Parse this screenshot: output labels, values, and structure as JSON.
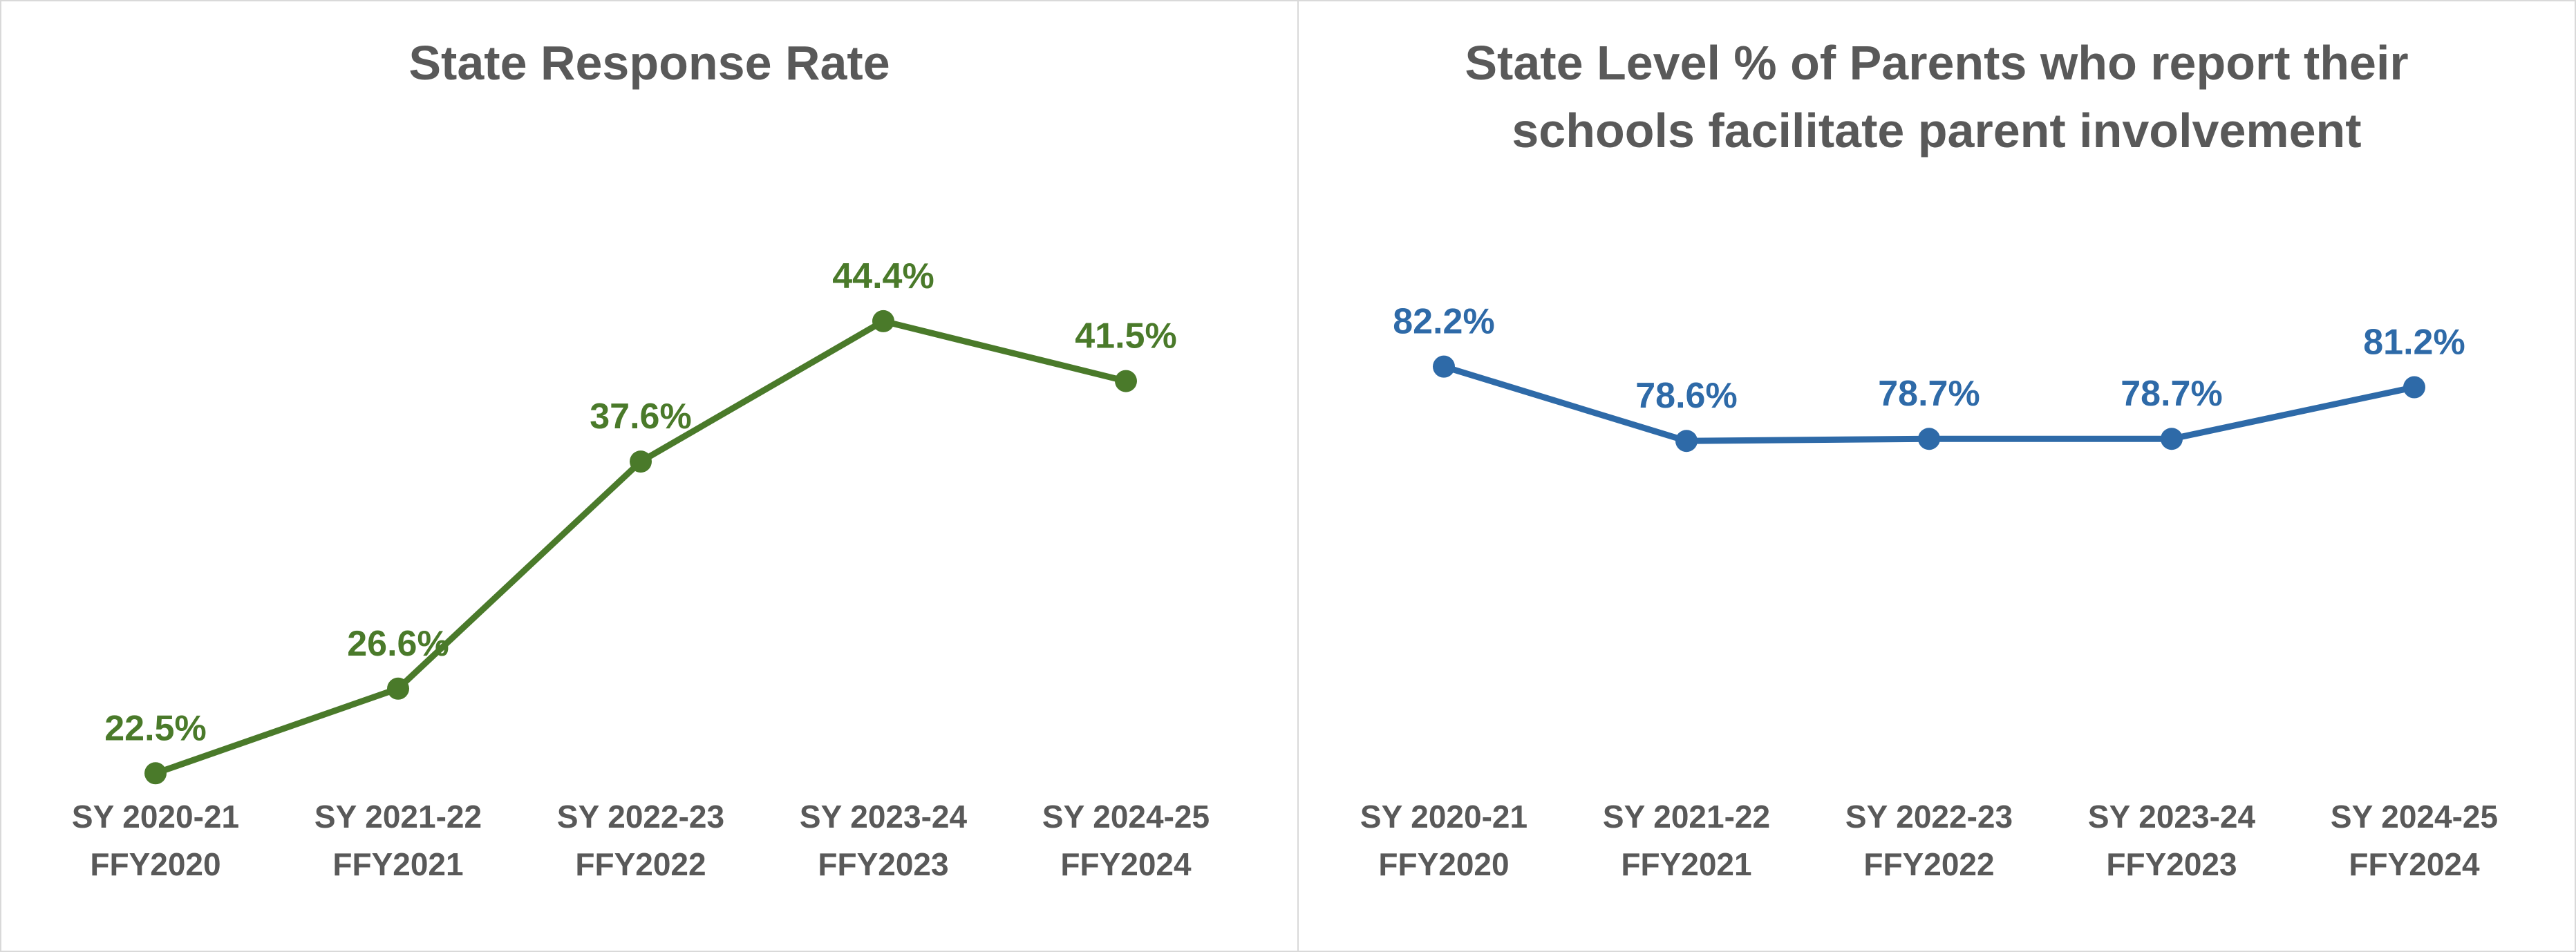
{
  "chart_data": [
    {
      "type": "line",
      "title": "State Response Rate",
      "categories": [
        [
          "SY 2020-21",
          "FFY2020"
        ],
        [
          "SY 2021-22",
          "FFY2021"
        ],
        [
          "SY 2022-23",
          "FFY2022"
        ],
        [
          "SY 2023-24",
          "FFY2023"
        ],
        [
          "SY 2024-25",
          "FFY2024"
        ]
      ],
      "values": [
        22.5,
        26.6,
        37.6,
        44.4,
        41.5
      ],
      "data_labels": [
        "22.5%",
        "26.6%",
        "37.6%",
        "44.4%",
        "41.5%"
      ],
      "xlabel": "",
      "ylabel": "",
      "ylim": [
        20,
        45
      ],
      "grid": false,
      "color": "#4a7a2a"
    },
    {
      "type": "line",
      "title": "State Level % of Parents who report their schools facilitate parent involvement",
      "title_lines": [
        "State Level % of Parents who report their",
        "schools facilitate parent involvement"
      ],
      "categories": [
        [
          "SY 2020-21",
          "FFY2020"
        ],
        [
          "SY 2021-22",
          "FFY2021"
        ],
        [
          "SY 2022-23",
          "FFY2022"
        ],
        [
          "SY 2023-24",
          "FFY2023"
        ],
        [
          "SY 2024-25",
          "FFY2024"
        ]
      ],
      "values": [
        82.2,
        78.6,
        78.7,
        78.7,
        81.2
      ],
      "data_labels": [
        "82.2%",
        "78.6%",
        "78.7%",
        "78.7%",
        "81.2%"
      ],
      "xlabel": "",
      "ylabel": "",
      "ylim": [
        60,
        85
      ],
      "grid": false,
      "color": "#2e6aa8"
    }
  ]
}
